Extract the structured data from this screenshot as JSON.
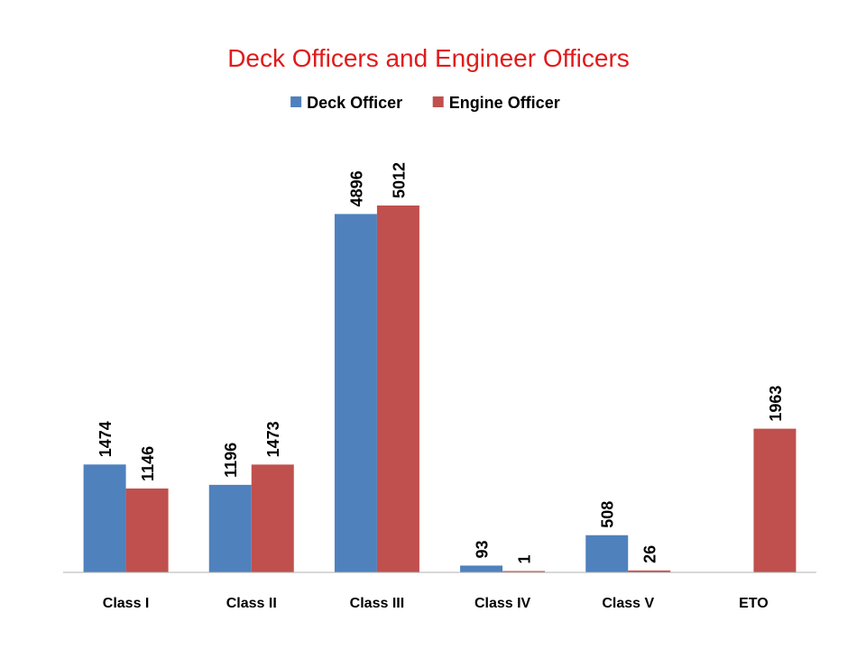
{
  "chart_data": {
    "type": "bar",
    "title": "Deck Officers and Engineer Officers",
    "categories": [
      "Class I",
      "Class II",
      "Class III",
      "Class IV",
      "Class V",
      "ETO"
    ],
    "series": [
      {
        "name": "Deck Officer",
        "color": "#4f81bd",
        "values": [
          1474,
          1196,
          4896,
          93,
          508,
          null
        ]
      },
      {
        "name": "Engine Officer",
        "color": "#c0504d",
        "values": [
          1146,
          1473,
          5012,
          1,
          26,
          1963
        ]
      }
    ],
    "xlabel": "",
    "ylabel": "",
    "ylim": [
      0,
      5012
    ],
    "grid": false,
    "legend_position": "top-center",
    "data_labels": true
  }
}
